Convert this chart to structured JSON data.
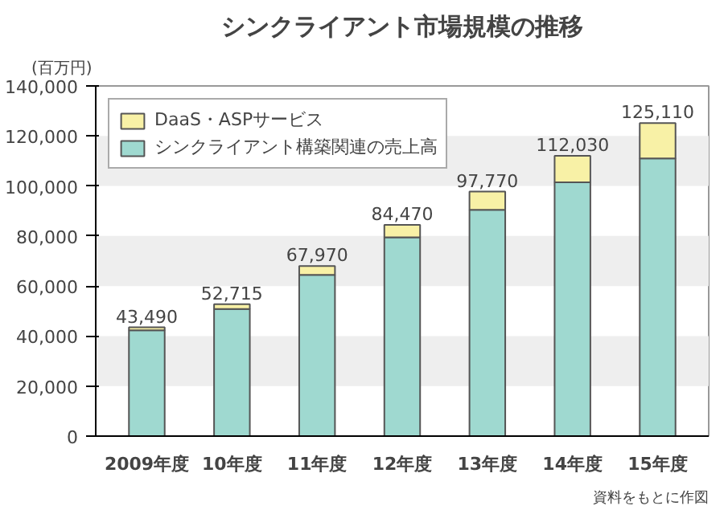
{
  "chart_data": {
    "type": "bar",
    "title": "シンクライアント市場規模の推移",
    "ylabel": "(百万円)",
    "categories": [
      "2009年度",
      "10年度",
      "11年度",
      "12年度",
      "13年度",
      "14年度",
      "15年度"
    ],
    "stacked": true,
    "series": [
      {
        "name": "シンクライアント構築関連の売上高",
        "color": "#9fd9d0",
        "values": [
          42300,
          50800,
          64500,
          79500,
          90500,
          101500,
          111000
        ]
      },
      {
        "name": "DaaS・ASPサービス",
        "color": "#f8f1a6",
        "values": [
          1190,
          1915,
          3470,
          4970,
          7270,
          10530,
          14110
        ]
      }
    ],
    "totals": [
      "43,490",
      "52,715",
      "67,970",
      "84,470",
      "97,770",
      "112,030",
      "125,110"
    ],
    "ylim": [
      0,
      140000
    ],
    "yticks": [
      {
        "value": 0,
        "label": "0"
      },
      {
        "value": 20000,
        "label": "20,000"
      },
      {
        "value": 40000,
        "label": "40,000"
      },
      {
        "value": 60000,
        "label": "60,000"
      },
      {
        "value": 80000,
        "label": "80,000"
      },
      {
        "value": 100000,
        "label": "100,000"
      },
      {
        "value": 120000,
        "label": "120,000"
      },
      {
        "value": 140000,
        "label": "140,000"
      }
    ],
    "bands": [
      {
        "axis": "y",
        "from": 20000,
        "to": 40000,
        "color": "#eeeeee"
      },
      {
        "axis": "y",
        "from": 60000,
        "to": 80000,
        "color": "#eeeeee"
      },
      {
        "axis": "y",
        "from": 100000,
        "to": 120000,
        "color": "#eeeeee"
      }
    ],
    "legend": "top left",
    "annotations": [
      "資料をもとに作図"
    ]
  }
}
